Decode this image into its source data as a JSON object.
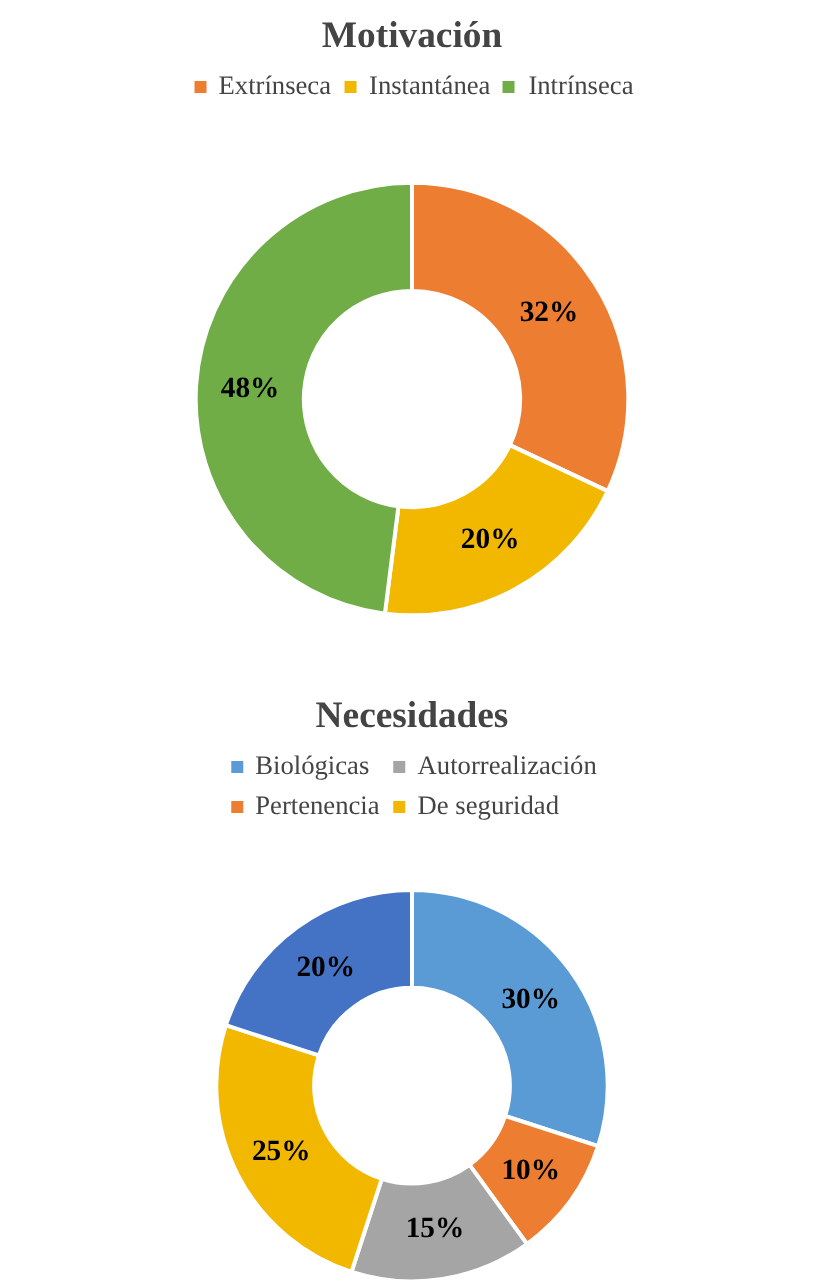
{
  "chart_data": [
    {
      "type": "donut",
      "title": "Motivación",
      "categories": [
        "Extrínseca",
        "Instantánea",
        "Intrínseca"
      ],
      "values": [
        32,
        20,
        48
      ],
      "colors": [
        "#ed7d31",
        "#f2b800",
        "#70ad47"
      ],
      "value_labels": [
        "32%",
        "20%",
        "48%"
      ],
      "legend": "top"
    },
    {
      "type": "donut",
      "title": "Necesidades",
      "categories": [
        "Biológicas",
        "Pertenencia",
        "Autorrealización",
        "De seguridad",
        null
      ],
      "values": [
        30,
        10,
        15,
        25,
        20
      ],
      "colors": [
        "#5b9bd5",
        "#ed7d31",
        "#a5a5a5",
        "#f2b800",
        "#4472c4"
      ],
      "value_labels": [
        "30%",
        "10%",
        "15%",
        "25%",
        "20%"
      ],
      "legend": "top"
    }
  ]
}
